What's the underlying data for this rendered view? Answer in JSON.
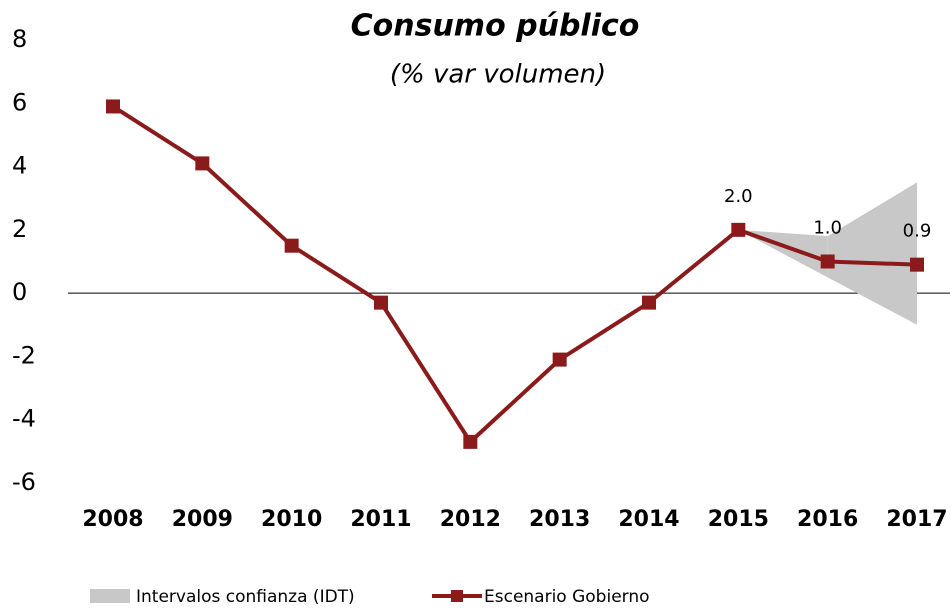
{
  "chart_data": {
    "type": "line",
    "title": "Consumo público",
    "subtitle": "(% var volumen)",
    "categories": [
      "2008",
      "2009",
      "2010",
      "2011",
      "2012",
      "2013",
      "2014",
      "2015",
      "2016",
      "2017"
    ],
    "series": [
      {
        "name": "Escenario Gobierno",
        "color": "#8b1a1a",
        "values": [
          5.9,
          4.1,
          1.5,
          -0.3,
          -4.7,
          -2.1,
          -0.3,
          2.0,
          1.0,
          0.9
        ],
        "value_labels": [
          null,
          null,
          null,
          null,
          null,
          null,
          null,
          "2.0",
          "1.0",
          "0.9"
        ]
      }
    ],
    "band": {
      "name": "Intervalos confianza (IDT)",
      "color": "#c8c8c8",
      "lower": [
        null,
        null,
        null,
        null,
        null,
        null,
        null,
        2.0,
        0.5,
        -1.0
      ],
      "upper": [
        null,
        null,
        null,
        null,
        null,
        null,
        null,
        2.0,
        1.8,
        3.5
      ]
    },
    "ylim": [
      -6,
      8
    ],
    "yticks": [
      -6,
      -4,
      -2,
      0,
      2,
      4,
      6,
      8
    ],
    "grid": false,
    "legend": "bottom"
  }
}
